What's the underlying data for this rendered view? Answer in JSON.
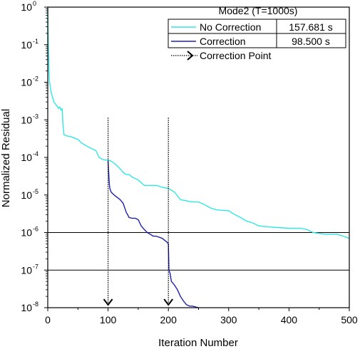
{
  "chart_data": {
    "type": "line",
    "title": "",
    "xlabel": "Iteration Number",
    "ylabel": "Normalized Residual",
    "xlim": [
      0,
      500
    ],
    "y_scale": "log",
    "ylim": [
      1e-08,
      1
    ],
    "x_ticks": [
      0,
      100,
      200,
      300,
      400,
      500
    ],
    "y_ticks": [
      {
        "base": "10",
        "exp": "0"
      },
      {
        "base": "10",
        "exp": "-1"
      },
      {
        "base": "10",
        "exp": "-2"
      },
      {
        "base": "10",
        "exp": "-3"
      },
      {
        "base": "10",
        "exp": "-4"
      },
      {
        "base": "10",
        "exp": "-5"
      },
      {
        "base": "10",
        "exp": "-6"
      },
      {
        "base": "10",
        "exp": "-7"
      },
      {
        "base": "10",
        "exp": "-8"
      }
    ],
    "grid": false,
    "reference_lines_y": [
      1e-06,
      1e-07
    ],
    "correction_points_x": [
      100,
      200
    ],
    "legend": {
      "placement": "top-right",
      "title": "Mode2 (T=1000s)",
      "entries": [
        {
          "label": "No Correction",
          "value": "157.681 s"
        },
        {
          "label": "Correction",
          "value": "98.500 s"
        }
      ],
      "marker_label": "Correction Point"
    },
    "series": [
      {
        "name": "No Correction",
        "color": "#33e6e6",
        "x": [
          0,
          1,
          2,
          3,
          4,
          6,
          8,
          10,
          14,
          18,
          20,
          22,
          24,
          25,
          27,
          30,
          40,
          50,
          55,
          60,
          70,
          80,
          85,
          90,
          95,
          100,
          105,
          110,
          120,
          125,
          130,
          135,
          140,
          150,
          160,
          170,
          180,
          190,
          200,
          210,
          215,
          220,
          240,
          250,
          260,
          270,
          280,
          300,
          310,
          320,
          330,
          340,
          350,
          370,
          400,
          420,
          430,
          440,
          460,
          480,
          490,
          500
        ],
        "y": [
          1.0,
          0.1,
          0.02,
          0.01,
          0.008,
          0.005,
          0.004,
          0.003,
          0.0025,
          0.002,
          0.0022,
          0.0018,
          0.002,
          0.0008,
          0.0004,
          0.00038,
          0.00035,
          0.0003,
          0.00025,
          0.00022,
          0.00018,
          0.00015,
          0.0001,
          9e-05,
          8.5e-05,
          8.5e-05,
          8e-05,
          7e-05,
          5e-05,
          4e-05,
          3.5e-05,
          3.5e-05,
          3e-05,
          2.5e-05,
          1.8e-05,
          1.8e-05,
          1.8e-05,
          1.6e-05,
          1.5e-05,
          1.2e-05,
          9.5e-06,
          7.5e-06,
          6.5e-06,
          6.5e-06,
          5.5e-06,
          4.5e-06,
          4e-06,
          3.8e-06,
          3e-06,
          2.5e-06,
          2e-06,
          1.8e-06,
          1.5e-06,
          1.4e-06,
          1.3e-06,
          1.3e-06,
          1.2e-06,
          1e-06,
          9e-07,
          9e-07,
          8e-07,
          7e-07
        ]
      },
      {
        "name": "Correction",
        "color": "#2020b0",
        "x": [
          100,
          102,
          103,
          105,
          110,
          120,
          125,
          130,
          135,
          140,
          145,
          150,
          155,
          160,
          165,
          170,
          175,
          180,
          190,
          198,
          200,
          201,
          203,
          205,
          210,
          215,
          220,
          225,
          230,
          235,
          240,
          250
        ],
        "y": [
          8e-05,
          2e-05,
          1.5e-05,
          1.2e-05,
          1e-05,
          7.5e-06,
          6e-06,
          3.5e-06,
          2.5e-06,
          2.4e-06,
          2.4e-06,
          2.2e-06,
          1.5e-06,
          1.2e-06,
          1e-06,
          9e-07,
          8e-07,
          8e-07,
          7e-07,
          5.5e-07,
          5e-07,
          1e-07,
          8e-08,
          5e-08,
          4e-08,
          3e-08,
          2e-08,
          1.5e-08,
          1.2e-08,
          1.1e-08,
          1.1e-08,
          1e-08
        ]
      }
    ]
  }
}
